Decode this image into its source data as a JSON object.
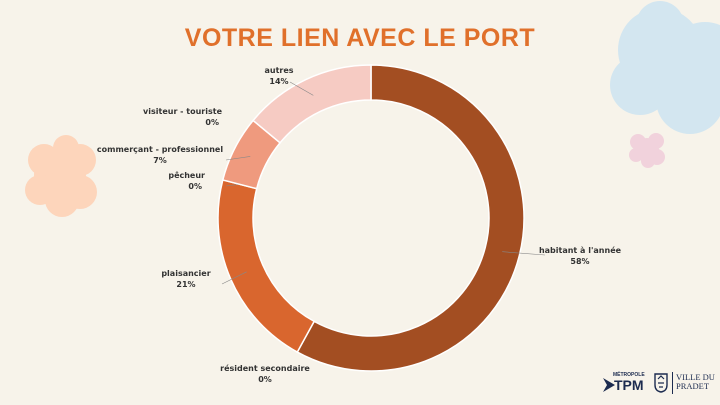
{
  "title": "VOTRE LIEN AVEC LE PORT",
  "colors": {
    "title": "#e0702b",
    "background": "#f7f3ea",
    "cloud_blue": "#d3e6f0",
    "cloud_peach": "#fdd5bb",
    "cloud_pink": "#f1d2dc"
  },
  "chart_data": {
    "type": "pie",
    "donut": true,
    "title": "",
    "slices": [
      {
        "label": "habitant à l'année",
        "value": 58,
        "display": "58%",
        "color": "#a34e22"
      },
      {
        "label": "résident secondaire",
        "value": 0,
        "display": "0%",
        "color": "#b86030"
      },
      {
        "label": "plaisancier",
        "value": 21,
        "display": "21%",
        "color": "#d9662e"
      },
      {
        "label": "pêcheur",
        "value": 0,
        "display": "0%",
        "color": "#e07d52"
      },
      {
        "label": "commerçant - professionnel",
        "value": 7,
        "display": "7%",
        "color": "#ef9a7e"
      },
      {
        "label": "visiteur - touriste",
        "value": 0,
        "display": "0%",
        "color": "#f3b9a6"
      },
      {
        "label": "autres",
        "value": 14,
        "display": "14%",
        "color": "#f6cbc3"
      }
    ]
  },
  "logos": {
    "metropole_small": "MÉTROPOLE",
    "metropole_big": "TPM",
    "ville_line1": "VILLE DU",
    "ville_line2": "PRADET"
  }
}
